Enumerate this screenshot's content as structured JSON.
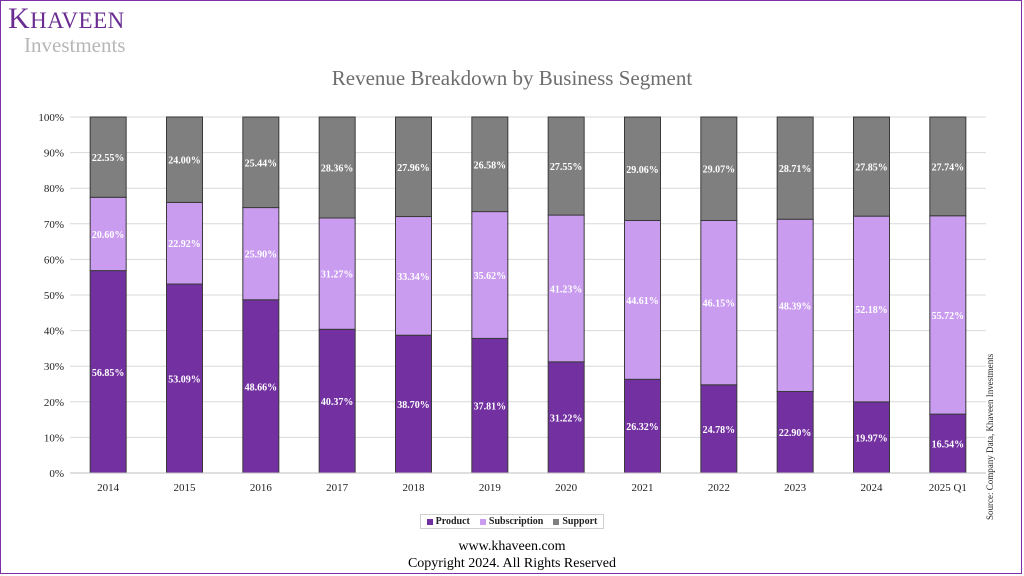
{
  "branding": {
    "logo_title": "Khaveen",
    "logo_subtitle": "Investments"
  },
  "colors": {
    "product": "#7330a0",
    "subscription": "#c99cf0",
    "support": "#7f7f7f",
    "border": "#7b2fa8"
  },
  "footer": {
    "website": "www.khaveen.com",
    "copyright": "Copyright 2024. All Rights Reserved"
  },
  "source_note": "Source: Company Data, Khaveen Investments",
  "chart_data": {
    "type": "bar",
    "stacked": true,
    "title": "Revenue Breakdown by Business Segment",
    "xlabel": "",
    "ylabel": "",
    "ylim": [
      0,
      100
    ],
    "y_ticks": [
      "0%",
      "10%",
      "20%",
      "30%",
      "40%",
      "50%",
      "60%",
      "70%",
      "80%",
      "90%",
      "100%"
    ],
    "grid": true,
    "legend_position": "bottom",
    "categories": [
      "2014",
      "2015",
      "2016",
      "2017",
      "2018",
      "2019",
      "2020",
      "2021",
      "2022",
      "2023",
      "2024",
      "2025 Q1"
    ],
    "series": [
      {
        "name": "Product",
        "values": [
          56.85,
          53.09,
          48.66,
          40.37,
          38.7,
          37.81,
          31.22,
          26.32,
          24.78,
          22.9,
          19.97,
          16.54
        ]
      },
      {
        "name": "Subscription",
        "values": [
          20.6,
          22.92,
          25.9,
          31.27,
          33.34,
          35.62,
          41.23,
          44.61,
          46.15,
          48.39,
          52.18,
          55.72
        ]
      },
      {
        "name": "Support",
        "values": [
          22.55,
          24.0,
          25.44,
          28.36,
          27.96,
          26.58,
          27.55,
          29.06,
          29.07,
          28.71,
          27.85,
          27.74
        ]
      }
    ]
  }
}
